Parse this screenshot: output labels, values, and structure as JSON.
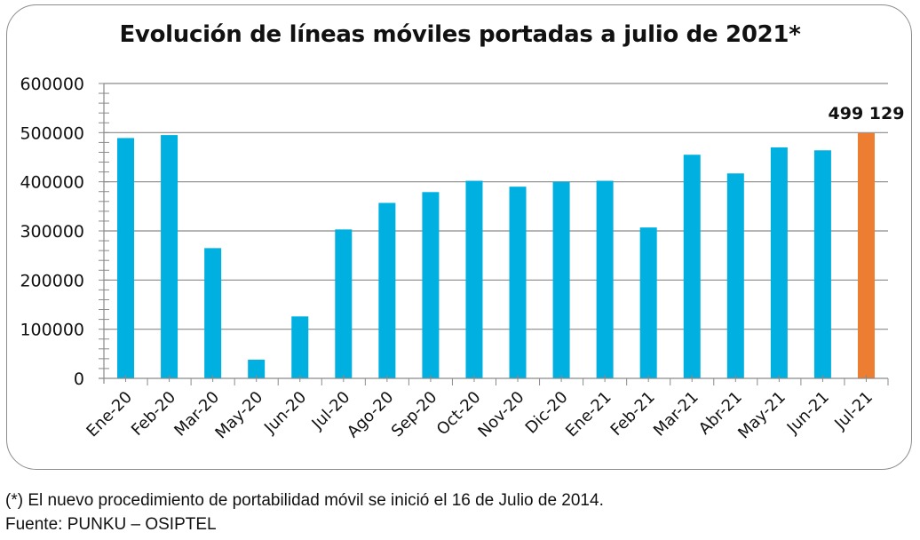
{
  "chart_data": {
    "type": "bar",
    "title": "Evolución de líneas móviles portadas a julio de 2021*",
    "xlabel": "",
    "ylabel": "",
    "ylim": [
      0,
      600000
    ],
    "yticks": [
      "0",
      "100000",
      "200000",
      "300000",
      "400000",
      "500000",
      "600000"
    ],
    "grid": true,
    "categories": [
      "Ene-20",
      "Feb-20",
      "Mar-20",
      "May-20",
      "Jun-20",
      "Jul-20",
      "Ago-20",
      "Sep-20",
      "Oct-20",
      "Nov-20",
      "Dic-20",
      "Ene-21",
      "Feb-21",
      "Mar-21",
      "Abr-21",
      "May-21",
      "Jun-21",
      "Jul-21"
    ],
    "values": [
      489000,
      495000,
      265000,
      38000,
      126000,
      303000,
      357000,
      379000,
      402000,
      390000,
      400000,
      402000,
      307000,
      455000,
      417000,
      470000,
      464000,
      499129
    ],
    "colors": {
      "default": "#00b0e0",
      "highlight": "#ed7d31"
    },
    "highlight_index": 17,
    "data_labels": [
      {
        "category": "Jul-21",
        "text": "499 129"
      }
    ]
  },
  "footer": {
    "note": "(*) El nuevo procedimiento de portabilidad móvil se inició el 16 de Julio de 2014.",
    "source": "Fuente: PUNKU – OSIPTEL"
  }
}
